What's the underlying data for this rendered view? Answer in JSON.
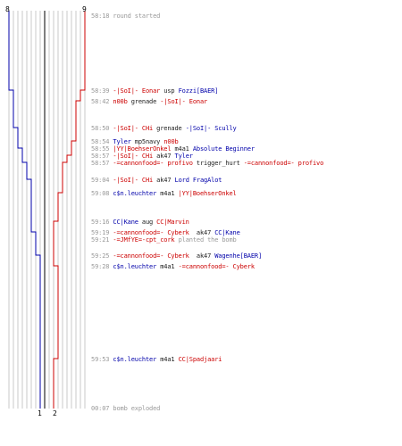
{
  "colors": {
    "red": "#cc0000",
    "blue": "#0000aa",
    "time": "#999999",
    "grid": "#c8c8c8",
    "center": "#555555",
    "text": "#222222"
  },
  "counts": {
    "blue_start": "8",
    "red_start": "9",
    "blue_end": "1",
    "red_end": "2"
  },
  "events": [
    {
      "time": "58:18",
      "parts": [
        {
          "text": "round started",
          "cls": "note"
        }
      ]
    },
    {
      "time": "58:39",
      "parts": [
        {
          "text": "-|SoI|- Eonar",
          "cls": "team-red"
        },
        {
          "text": " usp ",
          "cls": "txt"
        },
        {
          "text": "Fozzi[BAER]",
          "cls": "team-blue"
        }
      ]
    },
    {
      "time": "58:42",
      "parts": [
        {
          "text": "n00b",
          "cls": "team-red"
        },
        {
          "text": " grenade ",
          "cls": "txt"
        },
        {
          "text": "-|SoI|- Eonar",
          "cls": "team-red"
        }
      ]
    },
    {
      "time": "58:50",
      "parts": [
        {
          "text": "-|SoI|- CHi",
          "cls": "team-red"
        },
        {
          "text": " grenade ",
          "cls": "txt"
        },
        {
          "text": "-|SoI|- Scully",
          "cls": "team-blue"
        }
      ]
    },
    {
      "time": "58:54",
      "parts": [
        {
          "text": "Tyler",
          "cls": "team-blue"
        },
        {
          "text": " mp5navy ",
          "cls": "txt"
        },
        {
          "text": "n00b",
          "cls": "team-red"
        }
      ]
    },
    {
      "time": "58:55",
      "parts": [
        {
          "text": "|YY|BoehserOnkel",
          "cls": "team-red"
        },
        {
          "text": " m4a1 ",
          "cls": "txt"
        },
        {
          "text": "Absolute Beginner",
          "cls": "team-blue"
        }
      ]
    },
    {
      "time": "58:57",
      "parts": [
        {
          "text": "-|SoI|- CHi",
          "cls": "team-red"
        },
        {
          "text": " ak47 ",
          "cls": "txt"
        },
        {
          "text": "Tyler",
          "cls": "team-blue"
        }
      ]
    },
    {
      "time": "58:57",
      "parts": [
        {
          "text": "-=cannonfood=- profivo",
          "cls": "team-red"
        },
        {
          "text": " trigger_hurt ",
          "cls": "txt"
        },
        {
          "text": "-=cannonfood=- profivo",
          "cls": "team-red"
        }
      ]
    },
    {
      "time": "59:04",
      "parts": [
        {
          "text": "-|SoI|- CHi",
          "cls": "team-red"
        },
        {
          "text": " ak47 ",
          "cls": "txt"
        },
        {
          "text": "Lord FragAlot",
          "cls": "team-blue"
        }
      ]
    },
    {
      "time": "59:08",
      "parts": [
        {
          "text": "c$n.leuchter",
          "cls": "team-blue"
        },
        {
          "text": " m4a1 ",
          "cls": "txt"
        },
        {
          "text": "|YY|BoehserOnkel",
          "cls": "team-red"
        }
      ]
    },
    {
      "time": "59:16",
      "parts": [
        {
          "text": "CC|Kane",
          "cls": "team-blue"
        },
        {
          "text": " aug ",
          "cls": "txt"
        },
        {
          "text": "CC|Marvin",
          "cls": "team-red"
        }
      ]
    },
    {
      "time": "59:19",
      "parts": [
        {
          "text": "-=cannonfood=- Cyberk",
          "cls": "team-red"
        },
        {
          "text": "  ak47 ",
          "cls": "txt"
        },
        {
          "text": "CC|Kane",
          "cls": "team-blue"
        }
      ]
    },
    {
      "time": "59:21",
      "parts": [
        {
          "text": "-=JMfYE=-cpt_cork",
          "cls": "team-red"
        },
        {
          "text": " planted the bomb",
          "cls": "note"
        }
      ]
    },
    {
      "time": "59:25",
      "parts": [
        {
          "text": "-=cannonfood=- Cyberk",
          "cls": "team-red"
        },
        {
          "text": "  ak47 ",
          "cls": "txt"
        },
        {
          "text": "Wagenhe[BAER]",
          "cls": "team-blue"
        }
      ]
    },
    {
      "time": "59:28",
      "parts": [
        {
          "text": "c$n.leuchter",
          "cls": "team-blue"
        },
        {
          "text": " m4a1 ",
          "cls": "txt"
        },
        {
          "text": "-=cannonfood=- Cyberk",
          "cls": "team-red"
        }
      ]
    },
    {
      "time": "59:53",
      "parts": [
        {
          "text": "c$n.leuchter",
          "cls": "team-blue"
        },
        {
          "text": " m4a1 ",
          "cls": "txt"
        },
        {
          "text": "CC|Spadjaari",
          "cls": "team-red"
        }
      ]
    },
    {
      "time": "00:07",
      "parts": [
        {
          "text": "bomb exploded",
          "cls": "note"
        }
      ]
    }
  ]
}
